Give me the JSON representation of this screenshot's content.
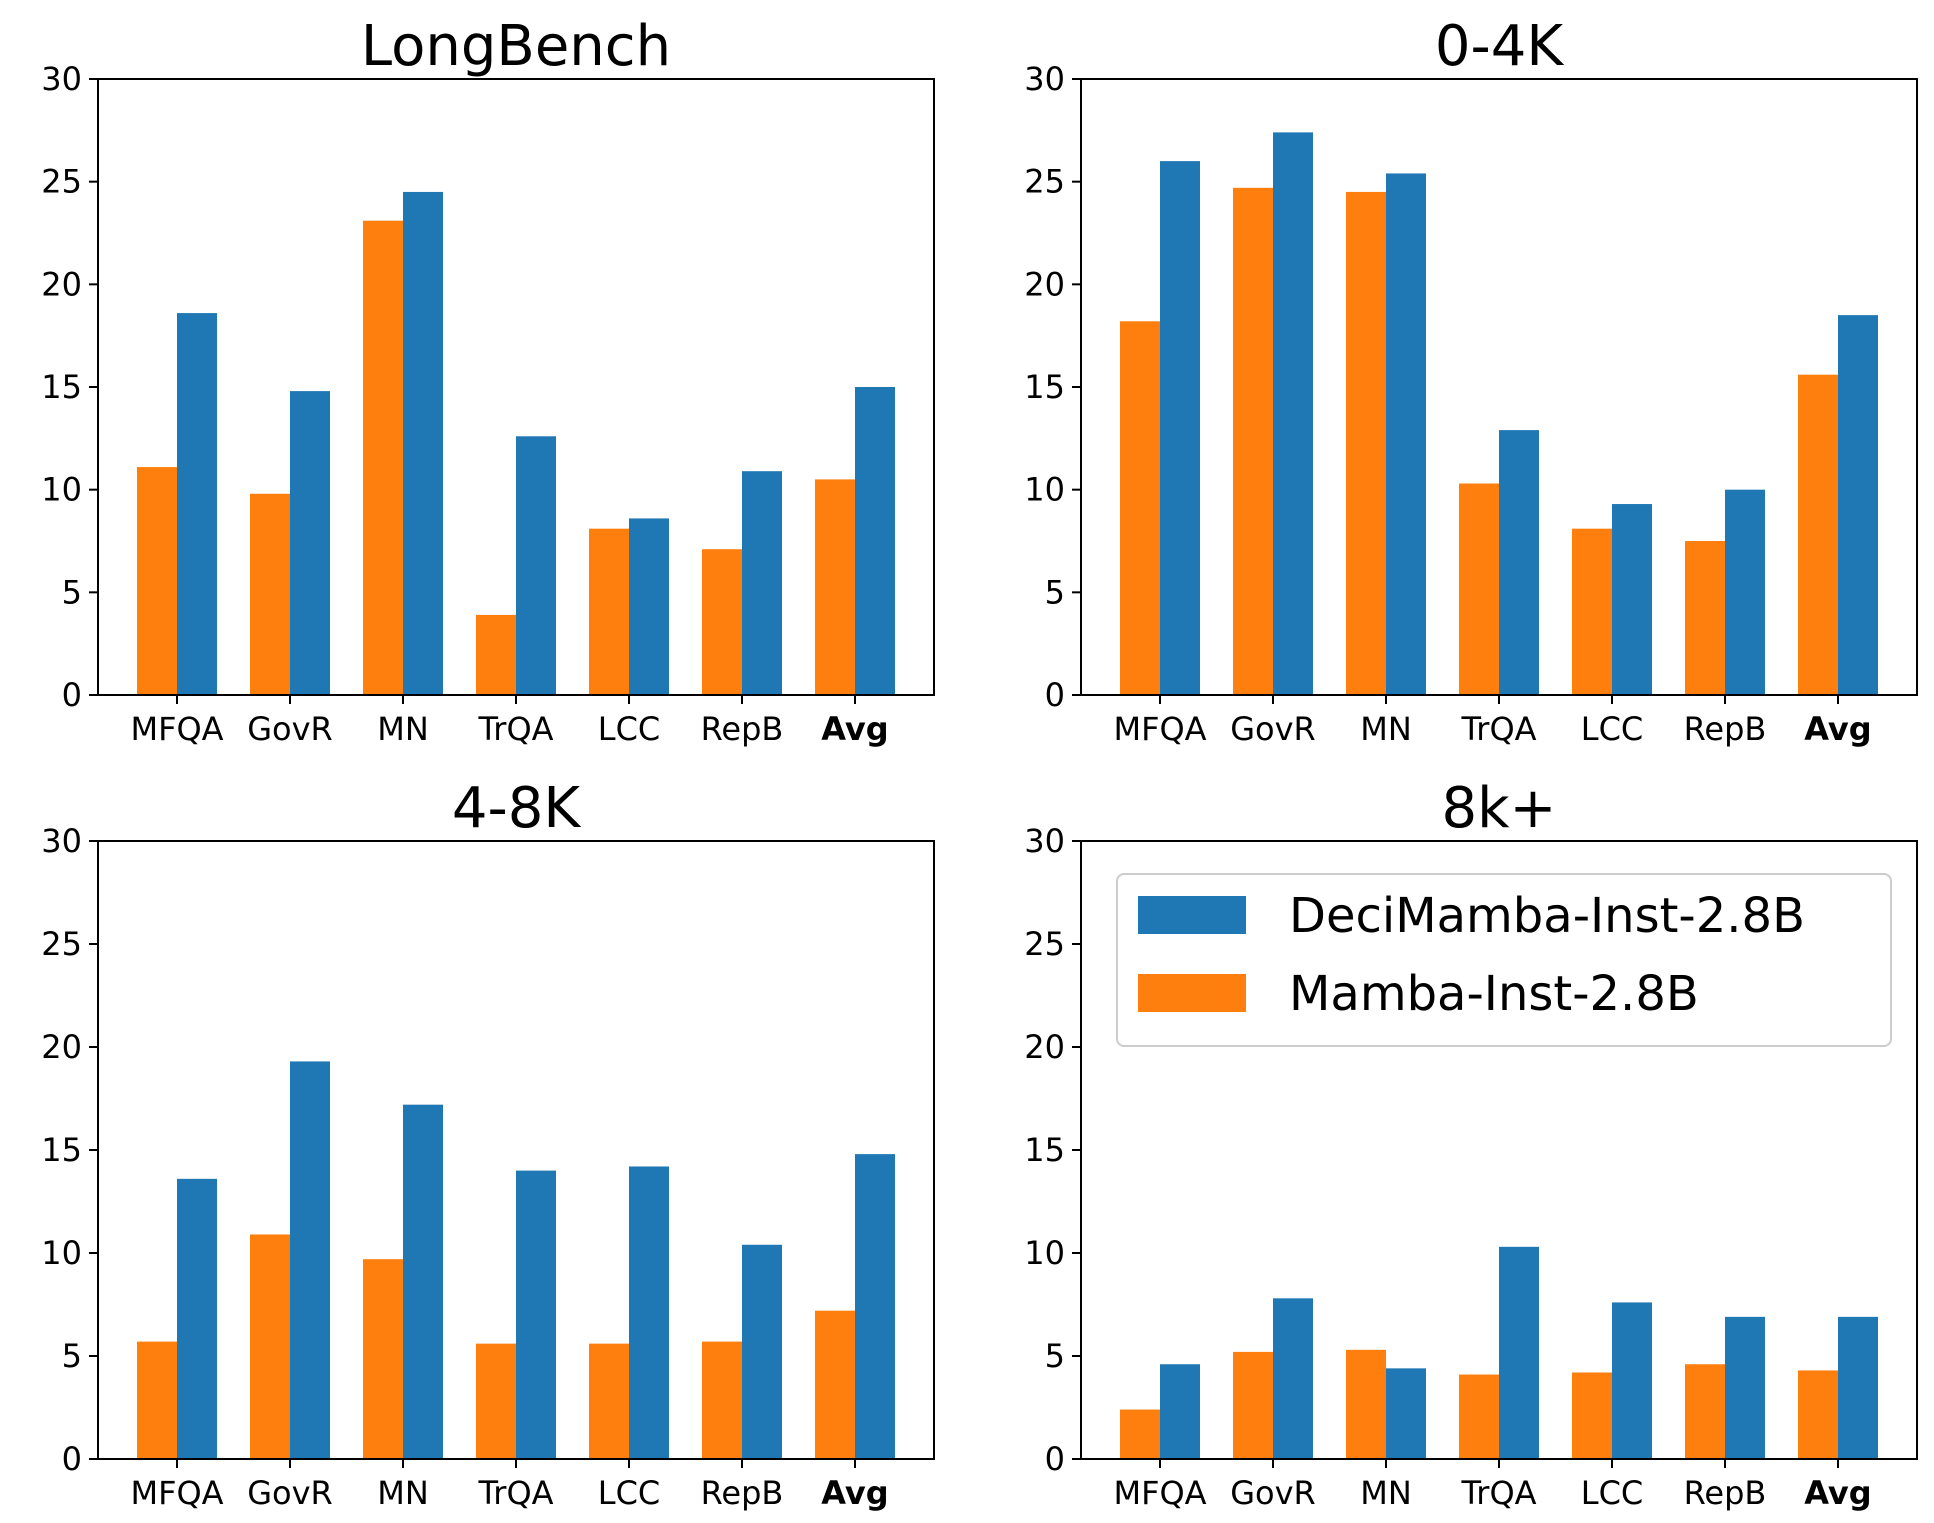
{
  "chart_data": [
    {
      "type": "bar",
      "title": "LongBench",
      "categories": [
        "MFQA",
        "GovR",
        "MN",
        "TrQA",
        "LCC",
        "RepB",
        "Avg"
      ],
      "bold_categories": [
        "Avg"
      ],
      "ylim": [
        0,
        30
      ],
      "yticks": [
        0,
        5,
        10,
        15,
        20,
        25,
        30
      ],
      "grid": false,
      "series": [
        {
          "name": "Mamba-Inst-2.8B",
          "color": "#ff7f0e",
          "values": [
            11.1,
            9.8,
            23.1,
            3.9,
            8.1,
            7.1,
            10.5
          ]
        },
        {
          "name": "DeciMamba-Inst-2.8B",
          "color": "#1f77b4",
          "values": [
            18.6,
            14.8,
            24.5,
            12.6,
            8.6,
            10.9,
            15.0
          ]
        }
      ]
    },
    {
      "type": "bar",
      "title": "0-4K",
      "categories": [
        "MFQA",
        "GovR",
        "MN",
        "TrQA",
        "LCC",
        "RepB",
        "Avg"
      ],
      "bold_categories": [
        "Avg"
      ],
      "ylim": [
        0,
        30
      ],
      "yticks": [
        0,
        5,
        10,
        15,
        20,
        25,
        30
      ],
      "grid": false,
      "series": [
        {
          "name": "Mamba-Inst-2.8B",
          "color": "#ff7f0e",
          "values": [
            18.2,
            24.7,
            24.5,
            10.3,
            8.1,
            7.5,
            15.6
          ]
        },
        {
          "name": "DeciMamba-Inst-2.8B",
          "color": "#1f77b4",
          "values": [
            26.0,
            27.4,
            25.4,
            12.9,
            9.3,
            10.0,
            18.5
          ]
        }
      ]
    },
    {
      "type": "bar",
      "title": "4-8K",
      "categories": [
        "MFQA",
        "GovR",
        "MN",
        "TrQA",
        "LCC",
        "RepB",
        "Avg"
      ],
      "bold_categories": [
        "Avg"
      ],
      "ylim": [
        0,
        30
      ],
      "yticks": [
        0,
        5,
        10,
        15,
        20,
        25,
        30
      ],
      "grid": false,
      "series": [
        {
          "name": "Mamba-Inst-2.8B",
          "color": "#ff7f0e",
          "values": [
            5.7,
            10.9,
            9.7,
            5.6,
            5.6,
            5.7,
            7.2
          ]
        },
        {
          "name": "DeciMamba-Inst-2.8B",
          "color": "#1f77b4",
          "values": [
            13.6,
            19.3,
            17.2,
            14.0,
            14.2,
            10.4,
            14.8
          ]
        }
      ]
    },
    {
      "type": "bar",
      "title": "8k+",
      "categories": [
        "MFQA",
        "GovR",
        "MN",
        "TrQA",
        "LCC",
        "RepB",
        "Avg"
      ],
      "bold_categories": [
        "Avg"
      ],
      "ylim": [
        0,
        30
      ],
      "yticks": [
        0,
        5,
        10,
        15,
        20,
        25,
        30
      ],
      "grid": false,
      "legend": {
        "placement": "upper-center",
        "entries": [
          "DeciMamba-Inst-2.8B",
          "Mamba-Inst-2.8B"
        ]
      },
      "series": [
        {
          "name": "Mamba-Inst-2.8B",
          "color": "#ff7f0e",
          "values": [
            2.4,
            5.2,
            5.3,
            4.1,
            4.2,
            4.6,
            4.3
          ]
        },
        {
          "name": "DeciMamba-Inst-2.8B",
          "color": "#1f77b4",
          "values": [
            4.6,
            7.8,
            4.4,
            10.3,
            7.6,
            6.9,
            6.9
          ]
        }
      ]
    }
  ]
}
